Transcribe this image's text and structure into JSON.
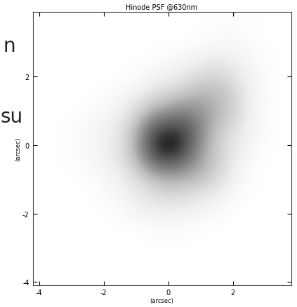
{
  "chart_data": {
    "type": "heatmap",
    "title": "Hinode PSF @630nm",
    "x_label": "(arcsec)",
    "y_label": "(arcsec)",
    "background_texts": [
      "n",
      "su"
    ],
    "x": [
      -4,
      -3.5,
      -3,
      -2.5,
      -2,
      -1.5,
      -1,
      -0.5,
      0,
      0.5,
      1,
      1.5,
      2,
      2.5,
      3,
      3.5,
      4
    ],
    "y": [
      4,
      3.5,
      3,
      2.5,
      2,
      1.5,
      1,
      0.5,
      0,
      -0.5,
      -1,
      -1.5,
      -2,
      -2.5,
      -3,
      -3.5,
      -4
    ],
    "cells": [
      [
        0,
        0,
        0,
        0,
        0,
        0,
        0,
        0,
        0,
        0,
        0,
        0,
        0,
        0,
        0,
        0,
        0
      ],
      [
        0,
        0,
        0,
        0,
        0,
        0,
        0,
        0,
        0,
        0,
        0,
        0.02,
        0.02,
        0.02,
        0,
        0,
        0
      ],
      [
        0,
        0,
        0,
        0,
        0,
        0,
        0,
        0,
        0,
        0,
        0.03,
        0.05,
        0.05,
        0.03,
        0,
        0,
        0
      ],
      [
        0,
        0,
        0,
        0,
        0,
        0,
        0,
        0.02,
        0.04,
        0.08,
        0.12,
        0.15,
        0.12,
        0.06,
        0.02,
        0,
        0
      ],
      [
        0,
        0,
        0,
        0,
        0,
        0,
        0.03,
        0.08,
        0.12,
        0.18,
        0.25,
        0.28,
        0.2,
        0.1,
        0.03,
        0,
        0
      ],
      [
        0,
        0,
        0,
        0,
        0.02,
        0.06,
        0.12,
        0.2,
        0.28,
        0.35,
        0.4,
        0.38,
        0.28,
        0.12,
        0.04,
        0,
        0
      ],
      [
        0,
        0,
        0,
        0.03,
        0.06,
        0.12,
        0.25,
        0.42,
        0.5,
        0.55,
        0.5,
        0.4,
        0.3,
        0.12,
        0.04,
        0,
        0
      ],
      [
        0,
        0,
        0.02,
        0.05,
        0.1,
        0.18,
        0.4,
        0.7,
        0.78,
        0.75,
        0.55,
        0.35,
        0.22,
        0.1,
        0.03,
        0,
        0
      ],
      [
        0,
        0,
        0.03,
        0.06,
        0.12,
        0.2,
        0.45,
        0.8,
        1.0,
        0.8,
        0.5,
        0.3,
        0.18,
        0.08,
        0.02,
        0,
        0
      ],
      [
        0,
        0,
        0.02,
        0.04,
        0.1,
        0.18,
        0.38,
        0.65,
        0.72,
        0.62,
        0.45,
        0.3,
        0.15,
        0.05,
        0,
        0,
        0
      ],
      [
        0,
        0,
        0,
        0.02,
        0.06,
        0.12,
        0.22,
        0.35,
        0.42,
        0.4,
        0.35,
        0.25,
        0.1,
        0.03,
        0,
        0,
        0
      ],
      [
        0,
        0,
        0,
        0,
        0.03,
        0.08,
        0.15,
        0.2,
        0.25,
        0.22,
        0.18,
        0.12,
        0.05,
        0,
        0,
        0,
        0
      ],
      [
        0,
        0,
        0,
        0,
        0,
        0.03,
        0.08,
        0.12,
        0.12,
        0.1,
        0.08,
        0.04,
        0,
        0,
        0,
        0,
        0
      ],
      [
        0,
        0,
        0,
        0,
        0,
        0,
        0,
        0.03,
        0.04,
        0.03,
        0,
        0,
        0,
        0,
        0,
        0,
        0
      ],
      [
        0,
        0,
        0,
        0,
        0,
        0,
        0,
        0,
        0,
        0,
        0,
        0,
        0,
        0,
        0,
        0,
        0
      ],
      [
        0,
        0,
        0,
        0,
        0,
        0,
        0,
        0,
        0,
        0,
        0,
        0,
        0,
        0,
        0,
        0,
        0
      ],
      [
        0,
        0,
        0,
        0,
        0,
        0,
        0,
        0,
        0,
        0,
        0,
        0,
        0,
        0,
        0,
        0,
        0
      ]
    ],
    "xlim": [
      -4.2,
      3.8
    ],
    "ylim": [
      -4.1,
      3.9
    ],
    "xticks": [
      -4,
      -2,
      0,
      2
    ],
    "yticks": [
      -4,
      -2,
      0,
      2
    ]
  }
}
